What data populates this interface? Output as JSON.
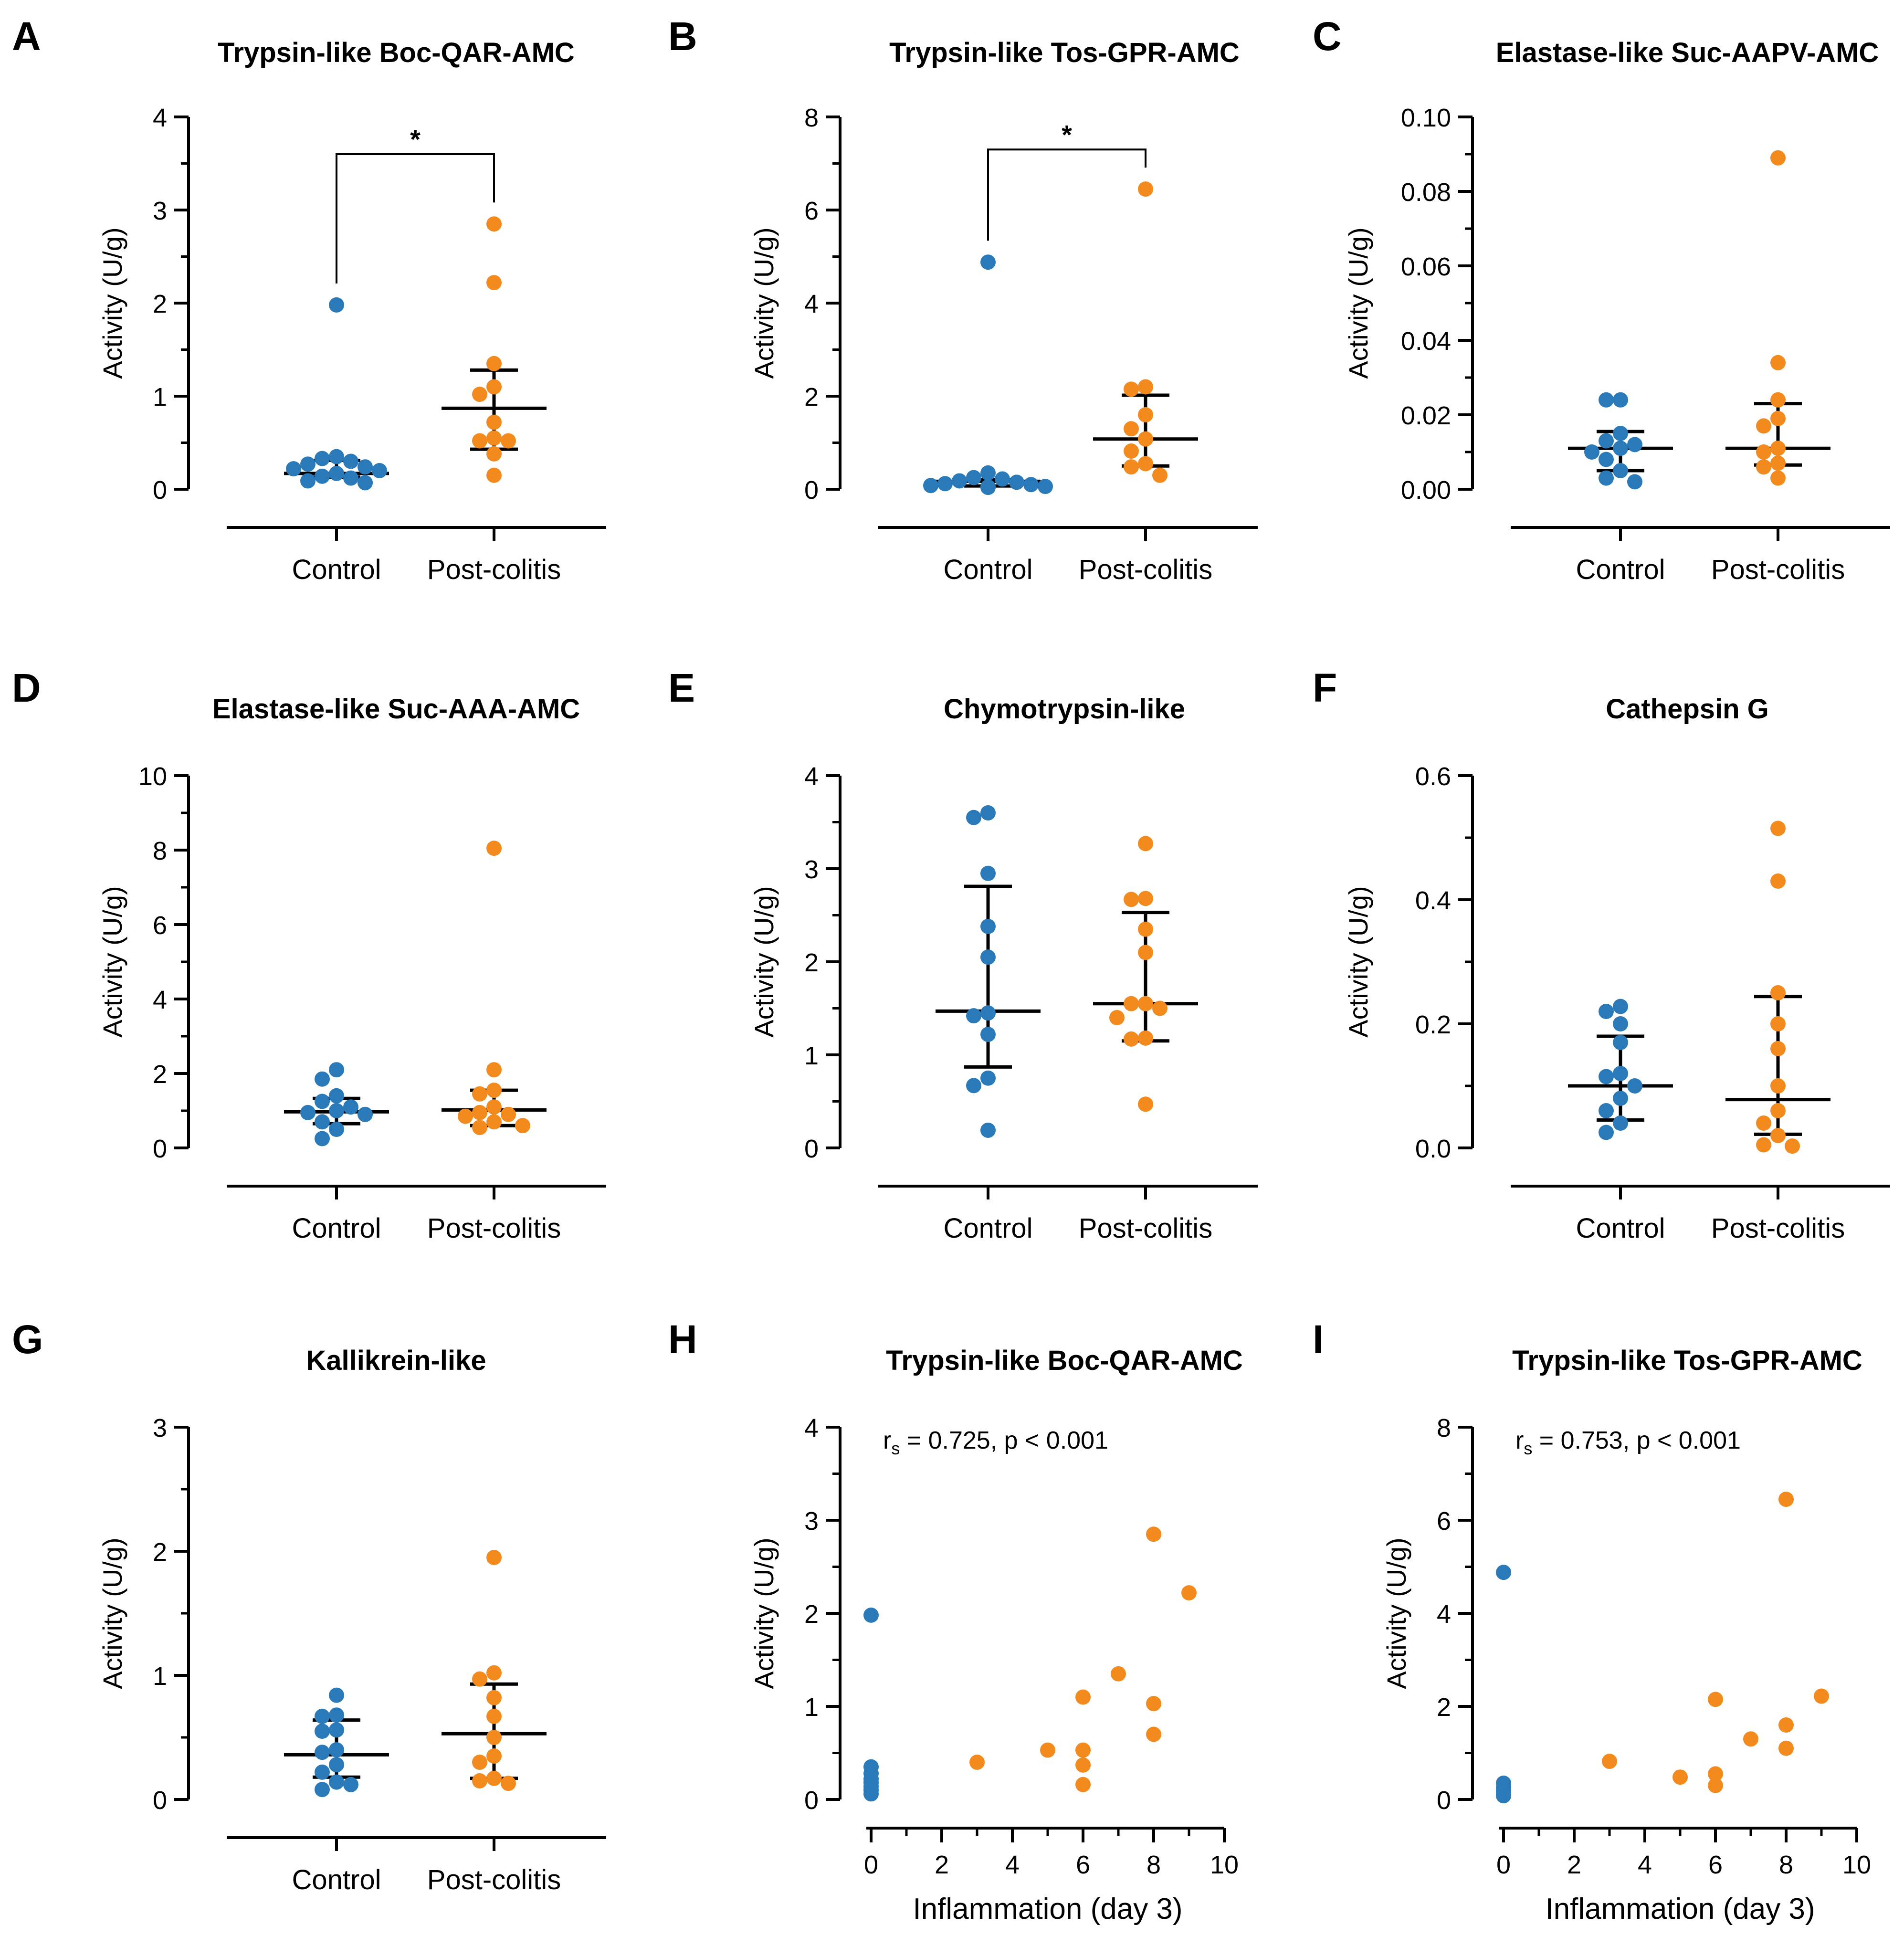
{
  "colors": {
    "control": "#2a7ab9",
    "post_colitis": "#f28a1e",
    "ink": "#000000"
  },
  "chart_data": [
    {
      "panel": "A",
      "type": "scatter",
      "title": "Trypsin-like Boc-QAR-AMC",
      "ylabel": "Activity (U/g)",
      "ylim": [
        0,
        4
      ],
      "yticks": [
        0,
        1,
        2,
        3,
        4
      ],
      "ytick_labels": [
        "0",
        "1",
        "2",
        "3",
        "4"
      ],
      "categories": [
        "Control",
        "Post-colitis"
      ],
      "series": [
        {
          "name": "Control",
          "values": [
            1.98,
            0.35,
            0.33,
            0.3,
            0.27,
            0.24,
            0.22,
            0.2,
            0.17,
            0.14,
            0.12,
            0.09,
            0.07
          ],
          "median": 0.17,
          "iqr": [
            0.13,
            0.31
          ]
        },
        {
          "name": "Post-colitis",
          "values": [
            2.85,
            2.22,
            1.35,
            1.1,
            1.02,
            0.72,
            0.55,
            0.52,
            0.52,
            0.38,
            0.15
          ],
          "median": 0.87,
          "iqr": [
            0.43,
            1.28
          ]
        }
      ],
      "significance": {
        "label": "*",
        "level": 3.6
      }
    },
    {
      "panel": "B",
      "type": "scatter",
      "title": "Trypsin-like Tos-GPR-AMC",
      "ylabel": "Activity (U/g)",
      "ylim": [
        0,
        8
      ],
      "yticks": [
        0,
        2,
        4,
        6,
        8
      ],
      "ytick_labels": [
        "0",
        "2",
        "4",
        "6",
        "8"
      ],
      "categories": [
        "Control",
        "Post-colitis"
      ],
      "series": [
        {
          "name": "Control",
          "values": [
            4.88,
            0.35,
            0.25,
            0.22,
            0.18,
            0.15,
            0.12,
            0.1,
            0.08,
            0.06,
            0.05,
            0.04
          ],
          "median": 0.17,
          "iqr": [
            0.07,
            0.21
          ]
        },
        {
          "name": "Post-colitis",
          "values": [
            6.45,
            2.2,
            2.15,
            1.6,
            1.3,
            1.08,
            0.82,
            0.55,
            0.48,
            0.3
          ],
          "median": 1.08,
          "iqr": [
            0.5,
            2.02
          ]
        }
      ],
      "significance": {
        "label": "*",
        "level": 7.3
      }
    },
    {
      "panel": "C",
      "type": "scatter",
      "title": "Elastase-like Suc-AAPV-AMC",
      "ylabel": "Activity (U/g)",
      "ylim": [
        0,
        0.1
      ],
      "yticks": [
        0,
        0.02,
        0.04,
        0.06,
        0.08,
        0.1
      ],
      "ytick_labels": [
        "0.00",
        "0.02",
        "0.04",
        "0.06",
        "0.08",
        "0.10"
      ],
      "categories": [
        "Control",
        "Post-colitis"
      ],
      "series": [
        {
          "name": "Control",
          "values": [
            0.024,
            0.024,
            0.015,
            0.013,
            0.012,
            0.011,
            0.01,
            0.008,
            0.005,
            0.003,
            0.002
          ],
          "median": 0.011,
          "iqr": [
            0.005,
            0.0155
          ]
        },
        {
          "name": "Post-colitis",
          "values": [
            0.089,
            0.034,
            0.024,
            0.019,
            0.017,
            0.011,
            0.01,
            0.007,
            0.006,
            0.003
          ],
          "median": 0.011,
          "iqr": [
            0.0065,
            0.023
          ]
        }
      ]
    },
    {
      "panel": "D",
      "type": "scatter",
      "title": "Elastase-like Suc-AAA-AMC",
      "ylabel": "Activity (U/g)",
      "ylim": [
        0,
        10
      ],
      "yticks": [
        0,
        2,
        4,
        6,
        8,
        10
      ],
      "ytick_labels": [
        "0",
        "2",
        "4",
        "6",
        "8",
        "10"
      ],
      "categories": [
        "Control",
        "Post-colitis"
      ],
      "series": [
        {
          "name": "Control",
          "values": [
            2.1,
            1.85,
            1.4,
            1.25,
            1.1,
            1.0,
            0.95,
            0.9,
            0.7,
            0.5,
            0.25
          ],
          "median": 0.97,
          "iqr": [
            0.65,
            1.33
          ]
        },
        {
          "name": "Post-colitis",
          "values": [
            8.05,
            2.1,
            1.55,
            1.45,
            1.1,
            0.95,
            0.9,
            0.85,
            0.7,
            0.6,
            0.55
          ],
          "median": 1.02,
          "iqr": [
            0.6,
            1.55
          ]
        }
      ]
    },
    {
      "panel": "E",
      "type": "scatter",
      "title": "Chymotrypsin-like",
      "ylabel": "Activity (U/g)",
      "ylim": [
        0,
        4
      ],
      "yticks": [
        0,
        1,
        2,
        3,
        4
      ],
      "ytick_labels": [
        "0",
        "1",
        "2",
        "3",
        "4"
      ],
      "categories": [
        "Control",
        "Post-colitis"
      ],
      "series": [
        {
          "name": "Control",
          "values": [
            3.6,
            3.55,
            2.95,
            2.38,
            2.05,
            1.45,
            1.42,
            1.22,
            0.75,
            0.67,
            0.19
          ],
          "median": 1.47,
          "iqr": [
            0.87,
            2.81
          ]
        },
        {
          "name": "Post-colitis",
          "values": [
            3.27,
            2.68,
            2.67,
            2.35,
            2.1,
            1.55,
            1.55,
            1.5,
            1.4,
            1.18,
            1.17,
            0.47
          ],
          "median": 1.55,
          "iqr": [
            1.15,
            2.53
          ]
        }
      ]
    },
    {
      "panel": "F",
      "type": "scatter",
      "title": "Cathepsin G",
      "ylabel": "Activity (U/g)",
      "ylim": [
        0,
        0.6
      ],
      "yticks": [
        0,
        0.2,
        0.4,
        0.6
      ],
      "ytick_labels": [
        "0.0",
        "0.2",
        "0.4",
        "0.6"
      ],
      "categories": [
        "Control",
        "Post-colitis"
      ],
      "series": [
        {
          "name": "Control",
          "values": [
            0.228,
            0.22,
            0.2,
            0.17,
            0.12,
            0.115,
            0.1,
            0.08,
            0.06,
            0.04,
            0.025
          ],
          "median": 0.1,
          "iqr": [
            0.045,
            0.18
          ]
        },
        {
          "name": "Post-colitis",
          "values": [
            0.515,
            0.43,
            0.25,
            0.2,
            0.16,
            0.1,
            0.06,
            0.04,
            0.02,
            0.005,
            0.003
          ],
          "median": 0.078,
          "iqr": [
            0.022,
            0.244
          ]
        }
      ]
    },
    {
      "panel": "G",
      "type": "scatter",
      "title": "Kallikrein-like",
      "ylabel": "Activity (U/g)",
      "ylim": [
        0,
        3
      ],
      "yticks": [
        0,
        1,
        2,
        3
      ],
      "ytick_labels": [
        "0",
        "1",
        "2",
        "3"
      ],
      "categories": [
        "Control",
        "Post-colitis"
      ],
      "series": [
        {
          "name": "Control",
          "values": [
            0.84,
            0.68,
            0.67,
            0.56,
            0.55,
            0.4,
            0.38,
            0.28,
            0.22,
            0.14,
            0.12,
            0.08
          ],
          "median": 0.36,
          "iqr": [
            0.18,
            0.64
          ]
        },
        {
          "name": "Post-colitis",
          "values": [
            1.95,
            1.02,
            0.97,
            0.82,
            0.67,
            0.5,
            0.35,
            0.3,
            0.17,
            0.15,
            0.13
          ],
          "median": 0.53,
          "iqr": [
            0.17,
            0.93
          ]
        }
      ]
    },
    {
      "panel": "H",
      "type": "scatter",
      "title": "Trypsin-like Boc-QAR-AMC",
      "xlabel": "Inflammation (day 3)",
      "ylabel": "Activity (U/g)",
      "xlim": [
        0,
        10
      ],
      "ylim": [
        0,
        4
      ],
      "xticks": [
        0,
        2,
        4,
        6,
        8,
        10
      ],
      "xtick_labels": [
        "0",
        "2",
        "4",
        "6",
        "8",
        "10"
      ],
      "yticks": [
        0,
        1,
        2,
        3,
        4
      ],
      "ytick_labels": [
        "0",
        "1",
        "2",
        "3",
        "4"
      ],
      "annotation": {
        "prefix": "r",
        "subscript": "s",
        "text": " = 0.725, p < 0.001"
      },
      "series": [
        {
          "name": "Control",
          "x": [
            0,
            0,
            0,
            0,
            0,
            0,
            0,
            0
          ],
          "y": [
            1.98,
            0.35,
            0.28,
            0.22,
            0.18,
            0.14,
            0.1,
            0.06
          ]
        },
        {
          "name": "Post-colitis",
          "x": [
            3,
            5,
            6,
            6,
            6,
            6,
            7,
            8,
            8,
            8,
            9
          ],
          "y": [
            0.4,
            0.53,
            1.1,
            0.53,
            0.37,
            0.16,
            1.35,
            2.85,
            1.03,
            0.7,
            2.22
          ]
        }
      ]
    },
    {
      "panel": "I",
      "type": "scatter",
      "title": "Trypsin-like Tos-GPR-AMC",
      "xlabel": "Inflammation (day 3)",
      "ylabel": "Activity (U/g)",
      "xlim": [
        0,
        10
      ],
      "ylim": [
        0,
        8
      ],
      "xticks": [
        0,
        2,
        4,
        6,
        8,
        10
      ],
      "xtick_labels": [
        "0",
        "2",
        "4",
        "6",
        "8",
        "10"
      ],
      "yticks": [
        0,
        2,
        4,
        6,
        8
      ],
      "ytick_labels": [
        "0",
        "2",
        "4",
        "6",
        "8"
      ],
      "annotation": {
        "prefix": "r",
        "subscript": "s",
        "text": " = 0.753, p < 0.001"
      },
      "series": [
        {
          "name": "Control",
          "x": [
            0,
            0,
            0,
            0,
            0,
            0
          ],
          "y": [
            4.88,
            0.35,
            0.25,
            0.18,
            0.12,
            0.08
          ]
        },
        {
          "name": "Post-colitis",
          "x": [
            3,
            5,
            6,
            6,
            6,
            7,
            8,
            8,
            8,
            9
          ],
          "y": [
            0.82,
            0.48,
            2.15,
            0.55,
            0.3,
            1.3,
            6.45,
            1.6,
            1.1,
            2.22
          ]
        }
      ]
    }
  ]
}
